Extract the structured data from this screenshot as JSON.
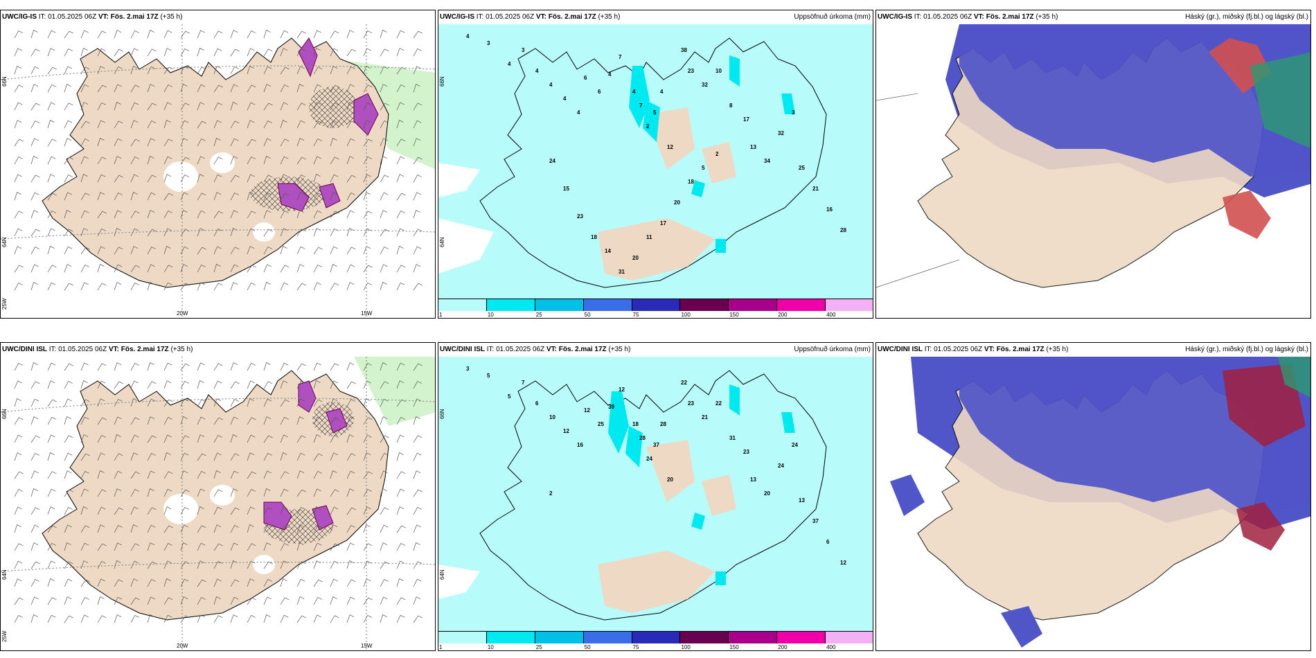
{
  "panels": [
    {
      "id": "p1",
      "model": "UWC/IG-IS",
      "it": "IT: 01.05.2025 06Z",
      "vt_label": "VT:",
      "vt": "Fös. 2.mai 17Z",
      "lead": "(+35 h)",
      "right_title": "",
      "lon_labels": [
        "20W",
        "15W"
      ],
      "lat_labels": [
        "66N",
        "64N",
        "25W"
      ],
      "type": "wind"
    },
    {
      "id": "p2",
      "model": "UWC/IG-IS",
      "it": "IT: 01.05.2025 06Z",
      "vt_label": "VT:",
      "vt": "Fös. 2.mai 17Z",
      "lead": "(+35 h)",
      "right_title": "Uppsöfnuð úrkoma (mm)",
      "lat_labels": [
        "66N",
        "64N"
      ],
      "type": "precip"
    },
    {
      "id": "p3",
      "model": "UWC/IG-IS",
      "it": "IT: 01.05.2025 06Z",
      "vt_label": "VT:",
      "vt": "Fös. 2.mai 17Z",
      "lead": "(+35 h)",
      "right_title": "Háský (gr.), miðský (fj.bl.) og lágský (bl.)",
      "type": "cloud"
    },
    {
      "id": "p4",
      "model": "UWC/DINI ISL",
      "it": "IT: 01.05.2025 06Z",
      "vt_label": "VT:",
      "vt": "Fös. 2.mai 17Z",
      "lead": "(+35 h)",
      "right_title": "",
      "lon_labels": [
        "20W",
        "15W"
      ],
      "lat_labels": [
        "66N",
        "64N",
        "25W"
      ],
      "type": "wind"
    },
    {
      "id": "p5",
      "model": "UWC/DINI ISL",
      "it": "IT: 01.05.2025 06Z",
      "vt_label": "VT:",
      "vt": "Fös. 2.mai 17Z",
      "lead": "(+35 h)",
      "right_title": "Uppsöfnuð úrkoma (mm)",
      "lat_labels": [
        "66N",
        "64N"
      ],
      "type": "precip"
    },
    {
      "id": "p6",
      "model": "UWC/DINI ISL",
      "it": "IT: 01.05.2025 06Z",
      "vt_label": "VT:",
      "vt": "Fös. 2.mai 17Z",
      "lead": "(+35 h)",
      "right_title": "Háský (gr.), miðský (fj.bl.) og lágský (bl.)",
      "type": "cloud"
    }
  ],
  "colorbar": {
    "ticks": [
      "1",
      "10",
      "25",
      "50",
      "75",
      "100",
      "150",
      "200",
      "400"
    ],
    "colors": [
      "#b8fbfb",
      "#00e8f0",
      "#00c0e8",
      "#3a6ee8",
      "#2a2ab8",
      "#6a0050",
      "#a8008a",
      "#f000a8",
      "#f4b0f4"
    ]
  },
  "precip_numbers_top": [
    "4",
    "3",
    "4",
    "3",
    "4",
    "4",
    "4",
    "4",
    "6",
    "6",
    "4",
    "7",
    "4",
    "7",
    "5",
    "2",
    "4",
    "12",
    "38",
    "23",
    "32",
    "10",
    "8",
    "17",
    "13",
    "34",
    "32",
    "3",
    "25",
    "21",
    "16",
    "28",
    "24",
    "15",
    "23",
    "18",
    "14",
    "31",
    "20",
    "11",
    "17",
    "20",
    "18",
    "5",
    "2"
  ],
  "precip_numbers_bottom": [
    "3",
    "5",
    "5",
    "7",
    "6",
    "10",
    "12",
    "16",
    "12",
    "25",
    "39",
    "12",
    "18",
    "28",
    "37",
    "24",
    "28",
    "20",
    "22",
    "23",
    "21",
    "22",
    "31",
    "23",
    "13",
    "20",
    "24",
    "24",
    "13",
    "37",
    "6",
    "12",
    "2"
  ],
  "colors": {
    "land": "#eed9c4",
    "ocean": "#ffffff",
    "precip_light": "#b8fbfb",
    "precip_mid": "#00e8f0",
    "snow_purple": "#b050c0",
    "green_area": "#c8f0c0",
    "cloud_blue": "#5055c8",
    "cloud_red": "#d05050",
    "cloud_green": "#2a9a70"
  }
}
